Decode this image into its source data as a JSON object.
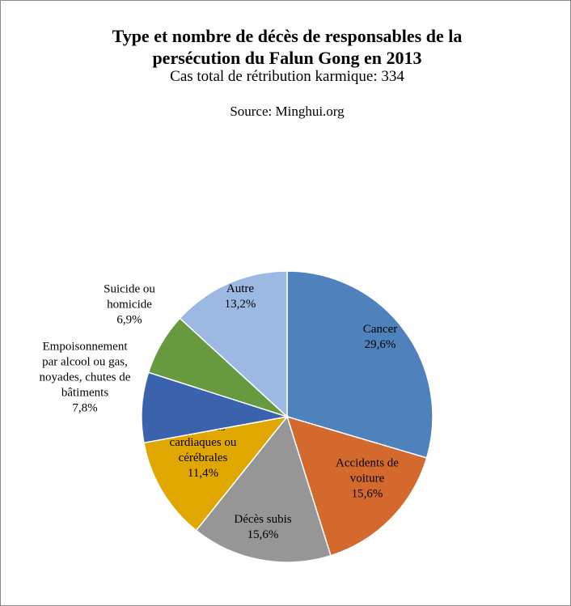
{
  "chart_data": {
    "type": "pie",
    "title": "Type et nombre de décès de responsables de la\npersécution du Falun Gong en 2013",
    "subtitle": "Cas total de rétribution karmique: 334",
    "source": "Source: Minghui.org",
    "categories": [
      "Cancer",
      "Accidents de\nvoiture",
      "Décès subis",
      "Maladies\ncardiaques ou\ncérébrales",
      "Empoisonnement\npar alcool ou gas,\nnoyades, chutes de\nbâtiments",
      "Suicide ou\nhomicide",
      "Autre"
    ],
    "values": [
      29.6,
      15.6,
      15.6,
      11.4,
      7.8,
      6.9,
      13.2
    ],
    "value_labels": [
      "29,6%",
      "15,6%",
      "15,6%",
      "11,4%",
      "7,8%",
      "6,9%",
      "13,2%"
    ],
    "colors": [
      "#4f81bd",
      "#d4692d",
      "#969696",
      "#e0a700",
      "#3b62ad",
      "#679a3e",
      "#9bb9e2"
    ]
  }
}
